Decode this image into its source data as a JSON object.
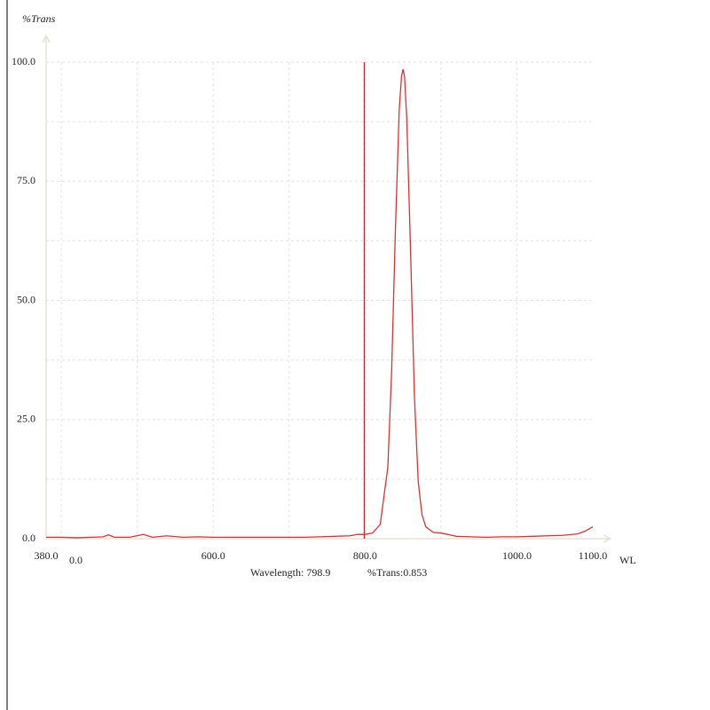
{
  "chart_data": {
    "type": "line",
    "y_axis_label": "%Trans",
    "x_axis_label": "WL",
    "origin_label": "0.0",
    "xlim": [
      380,
      1100
    ],
    "ylim": [
      0,
      100
    ],
    "xticks": [
      {
        "value": 380,
        "label": "380.0"
      },
      {
        "value": 600,
        "label": "600.0"
      },
      {
        "value": 800,
        "label": "800.0"
      },
      {
        "value": 1000,
        "label": "1000.0"
      },
      {
        "value": 1100,
        "label": "1100.0"
      }
    ],
    "yticks": [
      {
        "value": 0,
        "label": "0.0"
      },
      {
        "value": 25,
        "label": "25.0"
      },
      {
        "value": 50,
        "label": "50.0"
      },
      {
        "value": 75,
        "label": "75.0"
      },
      {
        "value": 100,
        "label": "100.0"
      }
    ],
    "xgrid": [
      400,
      500,
      600,
      700,
      800,
      900,
      1000
    ],
    "ygrid": [
      12.5,
      25,
      37.5,
      50,
      62.5,
      75,
      87.5,
      100
    ],
    "grid": true,
    "cursor": {
      "x": 798.9,
      "wavelength_label": "Wavelength: 798.9",
      "trans_label": "%Trans:0.853",
      "color": "#d42020"
    },
    "series": [
      {
        "name": "%Trans",
        "color": "#e03030",
        "x": [
          380,
          400,
          420,
          440,
          455,
          462,
          470,
          490,
          508,
          520,
          539,
          560,
          580,
          600,
          620,
          640,
          660,
          680,
          700,
          720,
          740,
          760,
          780,
          790,
          800,
          810,
          820,
          830,
          835,
          840,
          845,
          848,
          850,
          852,
          855,
          860,
          865,
          870,
          875,
          880,
          890,
          900,
          920,
          940,
          960,
          980,
          1000,
          1020,
          1040,
          1060,
          1080,
          1090,
          1100
        ],
        "values": [
          0.3,
          0.3,
          0.2,
          0.3,
          0.4,
          0.8,
          0.3,
          0.3,
          0.9,
          0.3,
          0.6,
          0.3,
          0.4,
          0.3,
          0.3,
          0.3,
          0.3,
          0.3,
          0.3,
          0.3,
          0.4,
          0.5,
          0.6,
          0.9,
          0.9,
          1.2,
          3,
          15,
          35,
          65,
          90,
          97,
          98.5,
          97,
          88,
          60,
          30,
          12,
          5,
          2.5,
          1.3,
          1.2,
          0.5,
          0.4,
          0.3,
          0.4,
          0.4,
          0.5,
          0.6,
          0.7,
          1.0,
          1.6,
          2.5
        ]
      }
    ]
  }
}
